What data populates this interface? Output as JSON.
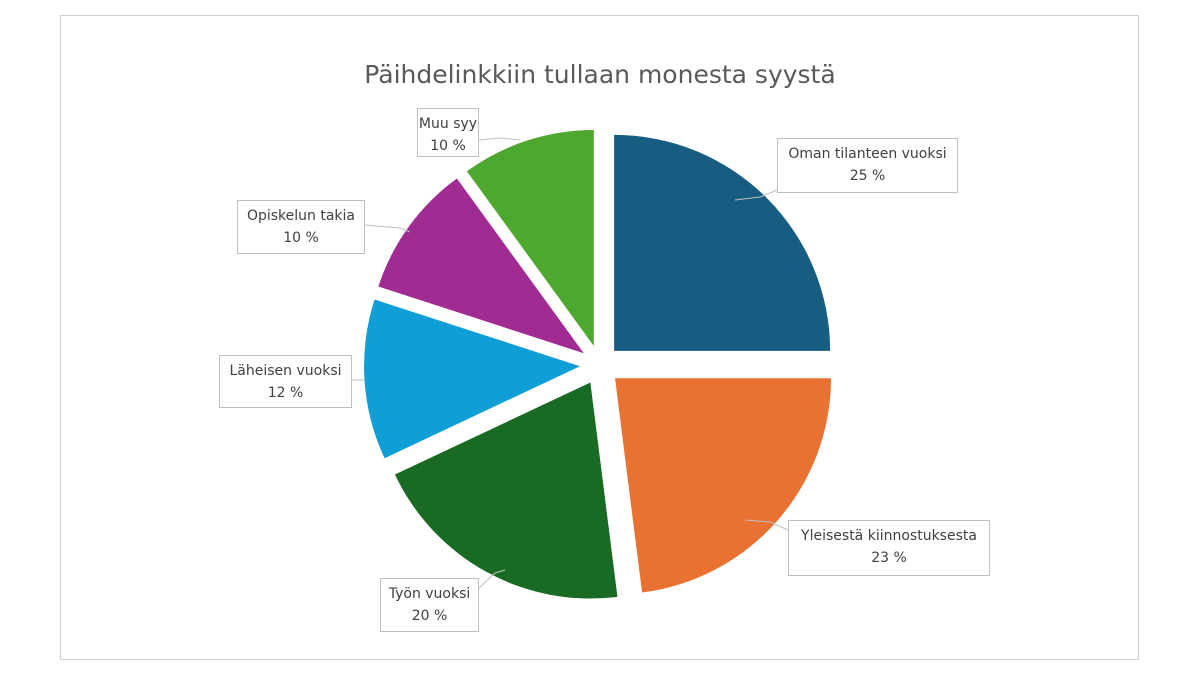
{
  "chart_data": {
    "type": "pie",
    "title": "Päihdelinkkiin tullaan monesta syystä",
    "start": "12 o'clock, clockwise",
    "exploded": true,
    "categories": [
      "Oman tilanteen vuoksi",
      "Yleisestä kiinnostuksesta",
      "Työn vuoksi",
      "Läheisen vuoksi",
      "Opiskelun takia",
      "Muu syy"
    ],
    "values": [
      25,
      23,
      20,
      12,
      10,
      10
    ],
    "value_labels": [
      "25 %",
      "23 %",
      "20 %",
      "12 %",
      "10 %",
      "10 %"
    ],
    "colors": [
      "#175d82",
      "#e97132",
      "#196b24",
      "#0f9ed5",
      "#a02b93",
      "#4ea72e"
    ]
  }
}
